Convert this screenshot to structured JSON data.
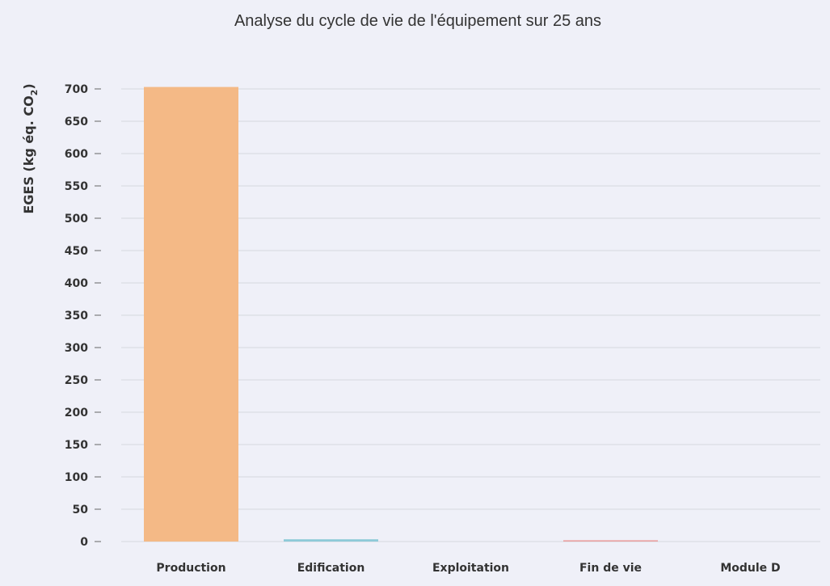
{
  "chart_data": {
    "type": "bar",
    "title": "Analyse du cycle de vie de l'équipement sur 25 ans",
    "ylabel_main": "EGES (kg éq. CO",
    "ylabel_sub": "2",
    "ylabel_end": ")",
    "categories": [
      "Production",
      "Edification",
      "Exploitation",
      "Fin de vie",
      "Module D"
    ],
    "values": [
      703,
      3.5,
      0,
      2,
      0
    ],
    "colors": [
      "#f4b986",
      "#8ecad8",
      "#b9a3d9",
      "#e9a0a0",
      "#a6cf9c"
    ],
    "ylim": [
      0,
      720
    ],
    "yticks": [
      0,
      50,
      100,
      150,
      200,
      250,
      300,
      350,
      400,
      450,
      500,
      550,
      600,
      650,
      700
    ],
    "grid": true,
    "legend": "none"
  }
}
